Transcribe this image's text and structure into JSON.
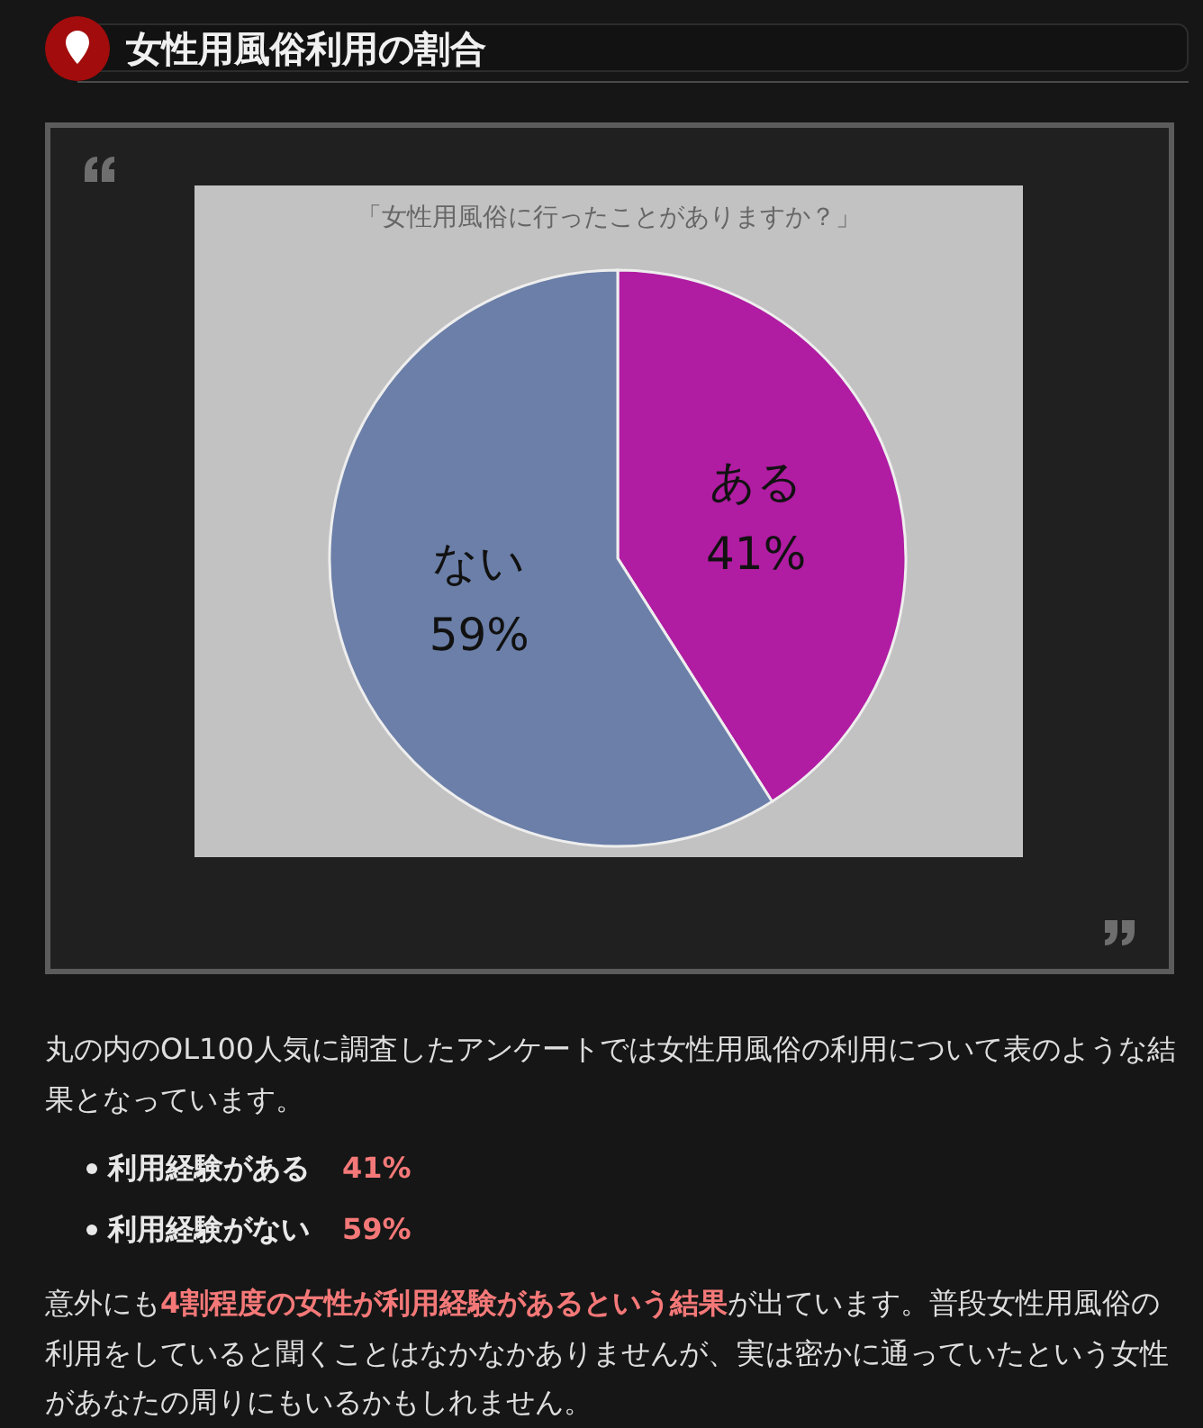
{
  "chart_data": {
    "type": "pie",
    "title": "女性用風俗利用の割合",
    "subtitle": "「女性用風俗に行ったことがありますか？」",
    "categories": [
      "ある",
      "ない"
    ],
    "values": [
      41,
      59
    ],
    "colors": [
      "#b01ca2",
      "#6b7fa8"
    ],
    "value_labels": [
      "41%",
      "59%"
    ],
    "annotations": [
      "丸の内のOL100人気に調査したアンケートでは女性用風俗の利用について表のような結果となっています。",
      "利用経験がある",
      "41%",
      "利用経験がない",
      "59%",
      "意外にも",
      "4割程度の女性が利用経験があるという結果",
      "が出ています。普段女性用風俗の",
      "利用をしていると聞くことはなかなかありませんが、実は密かに通っていたという女性があなたの周りにもいるかもしれません。"
    ]
  }
}
